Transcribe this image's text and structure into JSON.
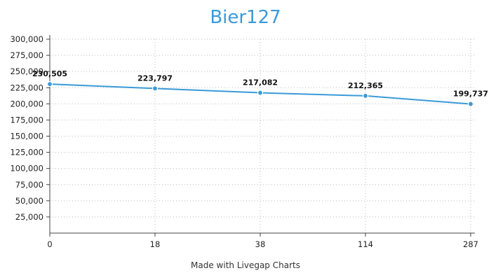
{
  "chart_data": {
    "type": "line",
    "title": "Bier127",
    "categories": [
      "0",
      "18",
      "38",
      "114",
      "287"
    ],
    "series": [
      {
        "values": [
          230505,
          223797,
          217082,
          212365,
          199737
        ]
      }
    ],
    "data_labels": [
      "230,505",
      "223,797",
      "217,082",
      "212,365",
      "199,737"
    ],
    "ylim": [
      0,
      300000
    ],
    "yticks": [
      25000,
      50000,
      75000,
      100000,
      125000,
      150000,
      175000,
      200000,
      225000,
      250000,
      275000,
      300000
    ],
    "ytick_labels": [
      "25,000",
      "50,000",
      "75,000",
      "100,000",
      "125,000",
      "150,000",
      "175,000",
      "200,000",
      "225,000",
      "250,000",
      "275,000",
      "300,000"
    ],
    "grid": true,
    "colors": {
      "title": "#3a9ad9",
      "line": "#3a9ad9",
      "grid": "#bbbbbb"
    }
  },
  "footer": "Made with Livegap Charts"
}
